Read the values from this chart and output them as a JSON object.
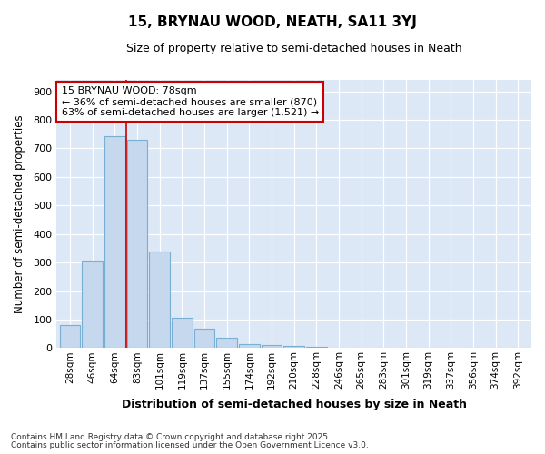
{
  "title": "15, BRYNAU WOOD, NEATH, SA11 3YJ",
  "subtitle": "Size of property relative to semi-detached houses in Neath",
  "xlabel": "Distribution of semi-detached houses by size in Neath",
  "ylabel": "Number of semi-detached properties",
  "categories": [
    "28sqm",
    "46sqm",
    "64sqm",
    "83sqm",
    "101sqm",
    "119sqm",
    "137sqm",
    "155sqm",
    "174sqm",
    "192sqm",
    "210sqm",
    "228sqm",
    "246sqm",
    "265sqm",
    "283sqm",
    "301sqm",
    "319sqm",
    "337sqm",
    "356sqm",
    "374sqm",
    "392sqm"
  ],
  "values": [
    80,
    308,
    743,
    730,
    338,
    107,
    67,
    38,
    14,
    12,
    9,
    5,
    2,
    0,
    0,
    0,
    0,
    0,
    0,
    0,
    0
  ],
  "bar_color": "#c5d8ee",
  "bar_edge_color": "#7aafd4",
  "red_line_index": 2.5,
  "annotation_title": "15 BRYNAU WOOD: 78sqm",
  "annotation_line1": "← 36% of semi-detached houses are smaller (870)",
  "annotation_line2": "63% of semi-detached houses are larger (1,521) →",
  "annotation_box_color": "#ffffff",
  "annotation_box_edge": "#cc0000",
  "ylim": [
    0,
    940
  ],
  "yticks": [
    0,
    100,
    200,
    300,
    400,
    500,
    600,
    700,
    800,
    900
  ],
  "plot_bg_color": "#dce8f5",
  "fig_bg_color": "#ffffff",
  "grid_color": "#ffffff",
  "footnote1": "Contains HM Land Registry data © Crown copyright and database right 2025.",
  "footnote2": "Contains public sector information licensed under the Open Government Licence v3.0."
}
